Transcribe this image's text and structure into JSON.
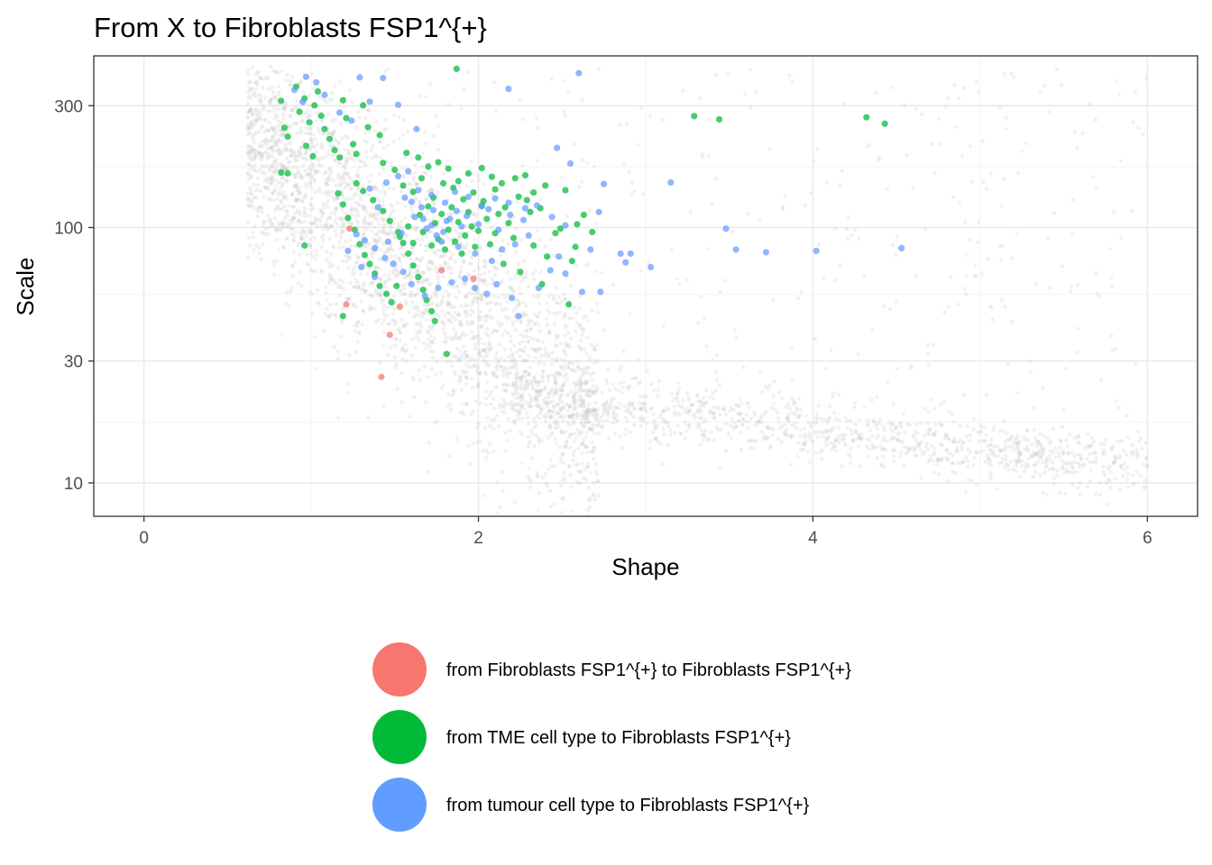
{
  "chart_data": {
    "type": "scatter",
    "title": "From X to  Fibroblasts FSP1^{+}",
    "xlabel": "Shape",
    "ylabel": "Scale",
    "xlim": [
      -0.3,
      6.3
    ],
    "ylim": [
      7.4,
      470
    ],
    "y_scale": "log10",
    "x_ticks": [
      0,
      2,
      4,
      6
    ],
    "y_ticks": [
      10,
      30,
      100,
      300
    ],
    "grid": true,
    "legend_position": "bottom",
    "background_color": "#bebebe",
    "series": [
      {
        "name": "from Fibroblasts FSP1^{+} to Fibroblasts FSP1^{+}",
        "color": "#F8766D",
        "points": [
          [
            1.23,
            99
          ],
          [
            1.21,
            50
          ],
          [
            1.53,
            49
          ],
          [
            1.47,
            38
          ],
          [
            1.78,
            68
          ],
          [
            1.97,
            63
          ],
          [
            1.42,
            26
          ]
        ]
      },
      {
        "name": "from TME cell type to Fibroblasts FSP1^{+}",
        "color": "#00BA38",
        "points": [
          [
            0.82,
            313
          ],
          [
            0.84,
            246
          ],
          [
            0.86,
            227
          ],
          [
            0.91,
            356
          ],
          [
            0.93,
            284
          ],
          [
            0.96,
            320
          ],
          [
            0.99,
            258
          ],
          [
            1.02,
            301
          ],
          [
            1.04,
            341
          ],
          [
            1.06,
            274
          ],
          [
            0.97,
            209
          ],
          [
            1.01,
            190
          ],
          [
            1.08,
            243
          ],
          [
            1.11,
            222
          ],
          [
            1.14,
            201
          ],
          [
            1.17,
            188
          ],
          [
            1.19,
            315
          ],
          [
            1.21,
            268
          ],
          [
            1.25,
            212
          ],
          [
            1.27,
            194
          ],
          [
            1.31,
            301
          ],
          [
            1.34,
            247
          ],
          [
            1.41,
            230
          ],
          [
            1.43,
            179
          ],
          [
            1.16,
            136
          ],
          [
            1.19,
            123
          ],
          [
            1.22,
            109
          ],
          [
            1.26,
            98
          ],
          [
            1.29,
            86
          ],
          [
            1.32,
            78
          ],
          [
            1.35,
            72
          ],
          [
            1.38,
            66
          ],
          [
            1.41,
            59
          ],
          [
            1.45,
            55
          ],
          [
            1.48,
            51
          ],
          [
            1.51,
            59
          ],
          [
            1.27,
            149
          ],
          [
            1.31,
            139
          ],
          [
            1.37,
            128
          ],
          [
            1.43,
            116
          ],
          [
            1.47,
            106
          ],
          [
            1.52,
            96
          ],
          [
            1.55,
            87
          ],
          [
            1.58,
            79
          ],
          [
            1.61,
            71
          ],
          [
            1.64,
            64
          ],
          [
            1.67,
            57
          ],
          [
            1.69,
            52
          ],
          [
            1.72,
            47
          ],
          [
            1.74,
            43
          ],
          [
            1.81,
            32
          ],
          [
            1.87,
            418
          ],
          [
            0.82,
            164
          ],
          [
            0.86,
            163
          ],
          [
            0.96,
            85
          ],
          [
            1.19,
            45
          ],
          [
            1.53,
            92
          ],
          [
            1.58,
            101
          ],
          [
            1.61,
            87
          ],
          [
            1.65,
            112
          ],
          [
            1.67,
            96
          ],
          [
            1.7,
            121
          ],
          [
            1.72,
            85
          ],
          [
            1.74,
            104
          ],
          [
            1.76,
            90
          ],
          [
            1.78,
            113
          ],
          [
            1.8,
            82
          ],
          [
            1.82,
            98
          ],
          [
            1.84,
            120
          ],
          [
            1.86,
            88
          ],
          [
            1.88,
            105
          ],
          [
            1.9,
            79
          ],
          [
            1.92,
            93
          ],
          [
            1.94,
            115
          ],
          [
            1.96,
            101
          ],
          [
            1.98,
            84
          ],
          [
            2.0,
            97
          ],
          [
            2.02,
            122
          ],
          [
            2.05,
            108
          ],
          [
            2.07,
            86
          ],
          [
            2.1,
            95
          ],
          [
            2.12,
            113
          ],
          [
            2.15,
            72
          ],
          [
            2.18,
            104
          ],
          [
            2.21,
            91
          ],
          [
            2.25,
            67
          ],
          [
            2.29,
            128
          ],
          [
            2.33,
            85
          ],
          [
            2.37,
            119
          ],
          [
            2.41,
            77
          ],
          [
            2.46,
            95
          ],
          [
            2.52,
            140
          ],
          [
            2.56,
            74
          ],
          [
            2.59,
            103
          ],
          [
            2.63,
            112
          ],
          [
            2.68,
            96
          ],
          [
            2.54,
            50
          ],
          [
            2.38,
            60
          ],
          [
            1.57,
            196
          ],
          [
            1.64,
            188
          ],
          [
            1.7,
            173
          ],
          [
            1.76,
            180
          ],
          [
            1.82,
            170
          ],
          [
            1.88,
            152
          ],
          [
            1.94,
            163
          ],
          [
            2.02,
            171
          ],
          [
            2.08,
            158
          ],
          [
            2.14,
            149
          ],
          [
            2.22,
            156
          ],
          [
            2.28,
            160
          ],
          [
            2.33,
            137
          ],
          [
            1.5,
            168
          ],
          [
            1.55,
            146
          ],
          [
            1.61,
            138
          ],
          [
            1.66,
            156
          ],
          [
            1.73,
            131
          ],
          [
            1.79,
            149
          ],
          [
            1.85,
            143
          ],
          [
            1.91,
            129
          ],
          [
            1.97,
            137
          ],
          [
            2.03,
            127
          ],
          [
            2.1,
            141
          ],
          [
            2.16,
            120
          ],
          [
            2.24,
            132
          ],
          [
            2.31,
            115
          ],
          [
            2.4,
            146
          ],
          [
            2.49,
            99
          ],
          [
            2.58,
            84
          ],
          [
            3.29,
            273
          ],
          [
            3.44,
            265
          ],
          [
            4.32,
            270
          ],
          [
            4.43,
            255
          ]
        ]
      },
      {
        "name": "from tumour cell type to Fibroblasts FSP1^{+}",
        "color": "#619CFF",
        "points": [
          [
            0.97,
            389
          ],
          [
            1.03,
            370
          ],
          [
            0.9,
            346
          ],
          [
            0.95,
            310
          ],
          [
            1.08,
            330
          ],
          [
            1.17,
            282
          ],
          [
            1.24,
            262
          ],
          [
            1.29,
            387
          ],
          [
            1.35,
            311
          ],
          [
            1.43,
            385
          ],
          [
            1.52,
            302
          ],
          [
            1.63,
            243
          ],
          [
            2.6,
            402
          ],
          [
            2.18,
            349
          ],
          [
            2.47,
            205
          ],
          [
            2.55,
            178
          ],
          [
            2.75,
            148
          ],
          [
            3.15,
            150
          ],
          [
            3.48,
            99
          ],
          [
            3.54,
            82
          ],
          [
            3.72,
            80
          ],
          [
            4.02,
            81
          ],
          [
            4.53,
            83
          ],
          [
            2.72,
            115
          ],
          [
            2.85,
            79
          ],
          [
            2.91,
            79
          ],
          [
            2.88,
            73
          ],
          [
            3.03,
            70
          ],
          [
            2.67,
            82
          ],
          [
            2.48,
            77
          ],
          [
            2.52,
            66
          ],
          [
            2.43,
            68
          ],
          [
            2.62,
            56
          ],
          [
            2.73,
            56
          ],
          [
            2.36,
            58
          ],
          [
            2.24,
            45
          ],
          [
            2.2,
            53
          ],
          [
            2.11,
            60
          ],
          [
            2.05,
            55
          ],
          [
            1.98,
            58
          ],
          [
            1.92,
            63
          ],
          [
            1.84,
            61
          ],
          [
            1.76,
            58
          ],
          [
            1.68,
            54
          ],
          [
            1.6,
            60
          ],
          [
            1.55,
            67
          ],
          [
            1.49,
            72
          ],
          [
            1.44,
            76
          ],
          [
            1.38,
            83
          ],
          [
            1.32,
            89
          ],
          [
            1.27,
            94
          ],
          [
            1.22,
            81
          ],
          [
            1.3,
            70
          ],
          [
            1.38,
            64
          ],
          [
            1.46,
            88
          ],
          [
            1.54,
            95
          ],
          [
            1.62,
            110
          ],
          [
            1.69,
            99
          ],
          [
            1.75,
            93
          ],
          [
            1.81,
            106
          ],
          [
            1.87,
            116
          ],
          [
            1.93,
            111
          ],
          [
            2.0,
            103
          ],
          [
            2.06,
            118
          ],
          [
            2.12,
            98
          ],
          [
            2.19,
            112
          ],
          [
            2.27,
            107
          ],
          [
            2.35,
            122
          ],
          [
            2.44,
            110
          ],
          [
            2.52,
            102
          ],
          [
            2.3,
            93
          ],
          [
            2.22,
            86
          ],
          [
            2.14,
            82
          ],
          [
            2.08,
            74
          ],
          [
            1.98,
            79
          ],
          [
            1.88,
            84
          ],
          [
            1.78,
            88
          ],
          [
            1.72,
            102
          ],
          [
            1.66,
            120
          ],
          [
            1.6,
            126
          ],
          [
            1.56,
            131
          ],
          [
            1.64,
            140
          ],
          [
            1.72,
            134
          ],
          [
            1.8,
            125
          ],
          [
            1.86,
            138
          ],
          [
            1.94,
            132
          ],
          [
            2.02,
            121
          ],
          [
            2.1,
            130
          ],
          [
            2.18,
            125
          ],
          [
            2.28,
            119
          ],
          [
            1.4,
            120
          ],
          [
            1.35,
            142
          ],
          [
            1.45,
            150
          ],
          [
            1.52,
            159
          ],
          [
            1.58,
            166
          ],
          [
            1.67,
            108
          ],
          [
            1.73,
            117
          ],
          [
            1.79,
            96
          ],
          [
            1.83,
            108
          ],
          [
            1.9,
            101
          ]
        ]
      }
    ]
  }
}
